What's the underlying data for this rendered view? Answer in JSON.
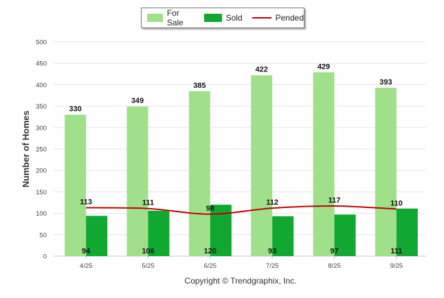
{
  "chart_data": {
    "type": "bar",
    "categories": [
      "4/25",
      "5/25",
      "6/25",
      "7/25",
      "8/25",
      "9/25"
    ],
    "series": [
      {
        "name": "For Sale",
        "kind": "bar",
        "color": "#a0e08a",
        "values": [
          330,
          349,
          385,
          422,
          429,
          393
        ]
      },
      {
        "name": "Sold",
        "kind": "bar",
        "color": "#10a830",
        "values": [
          94,
          106,
          120,
          93,
          97,
          111
        ]
      },
      {
        "name": "Pended",
        "kind": "line",
        "color": "#c00000",
        "values": [
          113,
          111,
          98,
          112,
          117,
          110
        ]
      }
    ],
    "title": "",
    "xlabel": "",
    "ylabel": "Number of Homes",
    "ylim": [
      0,
      500
    ],
    "yticks": [
      0,
      50,
      100,
      150,
      200,
      250,
      300,
      350,
      400,
      450,
      500
    ],
    "grid": true,
    "legend_position": "top-center"
  },
  "footer": {
    "copyright": "Copyright © Trendgraphix, Inc."
  }
}
